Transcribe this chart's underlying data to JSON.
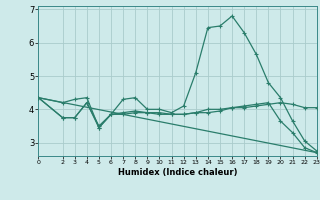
{
  "title": "",
  "xlabel": "Humidex (Indice chaleur)",
  "bg_color": "#ceeaea",
  "grid_color": "#aacccc",
  "line_color": "#2a7d6b",
  "xlim": [
    0,
    23
  ],
  "ylim": [
    2.6,
    7.1
  ],
  "yticks": [
    3,
    4,
    5,
    6,
    7
  ],
  "xticks": [
    0,
    2,
    3,
    4,
    5,
    6,
    7,
    8,
    9,
    10,
    11,
    12,
    13,
    14,
    15,
    16,
    17,
    18,
    19,
    20,
    21,
    22,
    23
  ],
  "line1_x": [
    0,
    2,
    3,
    4,
    5,
    6,
    7,
    8,
    9,
    10,
    11,
    12,
    13,
    14,
    15,
    16,
    17,
    18,
    19,
    20,
    21,
    22,
    23
  ],
  "line1_y": [
    4.35,
    4.2,
    4.3,
    4.35,
    3.45,
    3.85,
    4.3,
    4.35,
    4.0,
    4.0,
    3.9,
    4.1,
    5.1,
    6.45,
    6.5,
    6.8,
    6.3,
    5.65,
    4.8,
    4.35,
    3.65,
    3.05,
    2.75
  ],
  "line2_x": [
    0,
    2,
    3,
    4,
    5,
    6,
    7,
    8,
    9,
    10,
    11,
    12,
    13,
    14,
    15,
    16,
    17,
    18,
    19,
    20,
    21,
    22,
    23
  ],
  "line2_y": [
    4.35,
    3.75,
    3.75,
    4.2,
    3.45,
    3.85,
    3.85,
    3.9,
    3.9,
    3.85,
    3.85,
    3.85,
    3.9,
    3.9,
    3.95,
    4.05,
    4.05,
    4.1,
    4.15,
    4.2,
    4.15,
    4.05,
    4.05
  ],
  "line3_x": [
    0,
    23
  ],
  "line3_y": [
    4.35,
    2.7
  ],
  "line4_x": [
    0,
    2,
    3,
    4,
    5,
    6,
    7,
    8,
    9,
    10,
    11,
    12,
    13,
    14,
    15,
    16,
    17,
    18,
    19,
    20,
    21,
    22,
    23
  ],
  "line4_y": [
    4.35,
    3.75,
    3.75,
    4.2,
    3.5,
    3.85,
    3.9,
    3.95,
    3.9,
    3.9,
    3.85,
    3.85,
    3.9,
    4.0,
    4.0,
    4.05,
    4.1,
    4.15,
    4.2,
    3.65,
    3.3,
    2.85,
    2.7
  ]
}
